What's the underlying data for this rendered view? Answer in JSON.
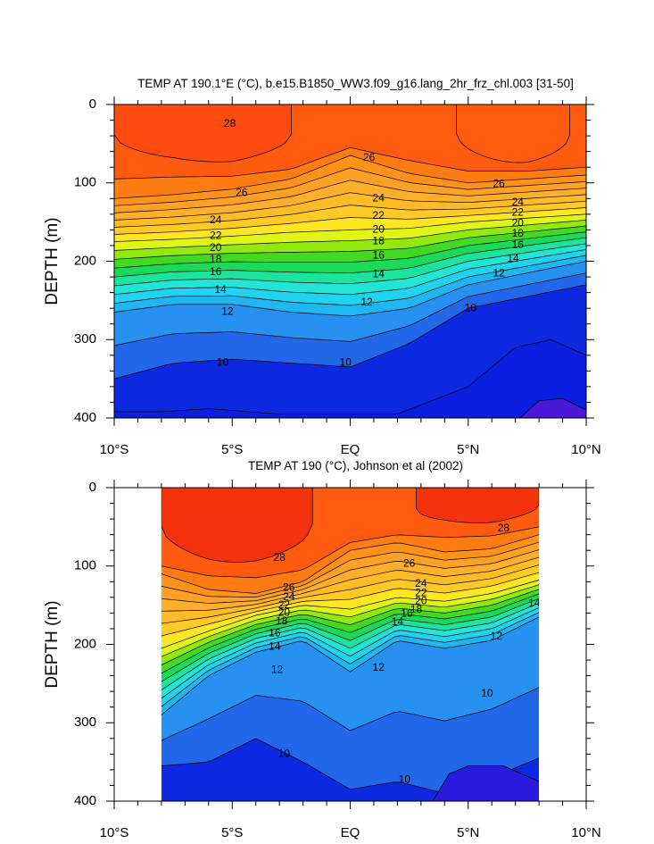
{
  "chart_data": [
    {
      "type": "contour",
      "title": "TEMP AT 190.1°E (°C), b.e15.B1850_WW3.f09_g16.lang_2hr_frz_chl.003 [31-50]",
      "ylabel": "DEPTH (m)",
      "xlabel": "",
      "x_range": [
        -10,
        10
      ],
      "y_range": [
        0,
        400
      ],
      "y_inverted": true,
      "x_ticks": [
        {
          "v": -10,
          "label": "10°S"
        },
        {
          "v": -5,
          "label": "5°S"
        },
        {
          "v": 0,
          "label": "EQ"
        },
        {
          "v": 5,
          "label": "5°N"
        },
        {
          "v": 10,
          "label": "10°N"
        }
      ],
      "y_ticks": [
        0,
        100,
        200,
        300,
        400
      ],
      "data_extent_x": [
        -10,
        10
      ],
      "warm_pools": [
        {
          "lat_start": -10,
          "lat_end": -2.5,
          "level": 28
        },
        {
          "lat_start": 4.5,
          "lat_end": 9.3,
          "level": 27.5
        }
      ],
      "thermocline": [
        {
          "lat": -10,
          "z28": 70,
          "z26": 120,
          "z20": 175,
          "z12": 265,
          "z10": 350
        },
        {
          "lat": -7.5,
          "z28": 70,
          "z26": 115,
          "z20": 172,
          "z12": 255,
          "z10": 330
        },
        {
          "lat": -5,
          "z28": 75,
          "z26": 108,
          "z20": 168,
          "z12": 255,
          "z10": 325
        },
        {
          "lat": -2.5,
          "z28": 70,
          "z26": 95,
          "z20": 163,
          "z12": 265,
          "z10": 330
        },
        {
          "lat": 0,
          "z28": 45,
          "z26": 65,
          "z20": 160,
          "z12": 270,
          "z10": 335
        },
        {
          "lat": 2.5,
          "z28": 55,
          "z26": 88,
          "z20": 158,
          "z12": 260,
          "z10": 305
        },
        {
          "lat": 5,
          "z28": 70,
          "z26": 100,
          "z20": 150,
          "z12": 230,
          "z10": 260
        },
        {
          "lat": 7.5,
          "z28": 75,
          "z26": 95,
          "z20": 145,
          "z12": 215,
          "z10": 245
        },
        {
          "lat": 10,
          "z28": 70,
          "z26": 90,
          "z20": 140,
          "z12": 200,
          "z10": 230
        }
      ],
      "bottom_contours": [
        {
          "level": 9,
          "points": [
            [
              -10,
              392
            ],
            [
              -8,
              392
            ],
            [
              -6,
              388
            ],
            [
              -3,
              395
            ],
            [
              0,
              395
            ],
            [
              2,
              395
            ],
            [
              5,
              360
            ],
            [
              7,
              310
            ],
            [
              8.5,
              300
            ],
            [
              10,
              320
            ]
          ]
        },
        {
          "level": 8,
          "points": [
            [
              7.2,
              400
            ],
            [
              8,
              378
            ],
            [
              9,
              375
            ],
            [
              10,
              390
            ]
          ]
        }
      ],
      "contour_labels": [
        {
          "text": "28",
          "x": -5.1,
          "y": 25
        },
        {
          "text": "26",
          "x": 0.8,
          "y": 68
        },
        {
          "text": "26",
          "x": -4.6,
          "y": 113
        },
        {
          "text": "26",
          "x": 6.3,
          "y": 102
        },
        {
          "text": "24",
          "x": -5.7,
          "y": 148
        },
        {
          "text": "22",
          "x": -5.7,
          "y": 168
        },
        {
          "text": "20",
          "x": -5.7,
          "y": 183
        },
        {
          "text": "18",
          "x": -5.7,
          "y": 198
        },
        {
          "text": "16",
          "x": -5.7,
          "y": 214
        },
        {
          "text": "14",
          "x": -5.5,
          "y": 237
        },
        {
          "text": "12",
          "x": -5.2,
          "y": 265
        },
        {
          "text": "10",
          "x": -5.4,
          "y": 330
        },
        {
          "text": "24",
          "x": 1.2,
          "y": 120
        },
        {
          "text": "22",
          "x": 1.2,
          "y": 142
        },
        {
          "text": "20",
          "x": 1.2,
          "y": 160
        },
        {
          "text": "18",
          "x": 1.2,
          "y": 175
        },
        {
          "text": "16",
          "x": 1.2,
          "y": 193
        },
        {
          "text": "14",
          "x": 1.2,
          "y": 217
        },
        {
          "text": "12",
          "x": 0.7,
          "y": 253
        },
        {
          "text": "10",
          "x": -0.2,
          "y": 330
        },
        {
          "text": "24",
          "x": 7.1,
          "y": 125
        },
        {
          "text": "22",
          "x": 7.1,
          "y": 138
        },
        {
          "text": "20",
          "x": 7.1,
          "y": 152
        },
        {
          "text": "18",
          "x": 7.1,
          "y": 165
        },
        {
          "text": "16",
          "x": 7.1,
          "y": 180
        },
        {
          "text": "14",
          "x": 6.9,
          "y": 197
        },
        {
          "text": "12",
          "x": 6.3,
          "y": 216
        },
        {
          "text": "10",
          "x": 5.1,
          "y": 260
        }
      ]
    },
    {
      "type": "contour",
      "title": "TEMP AT 190 (°C), Johnson et al (2002)",
      "ylabel": "DEPTH (m)",
      "xlabel": "",
      "x_range": [
        -10,
        10
      ],
      "y_range": [
        0,
        400
      ],
      "y_inverted": true,
      "x_ticks": [
        {
          "v": -10,
          "label": "10°S"
        },
        {
          "v": -5,
          "label": "5°S"
        },
        {
          "v": 0,
          "label": "EQ"
        },
        {
          "v": 5,
          "label": "5°N"
        },
        {
          "v": 10,
          "label": "10°N"
        }
      ],
      "y_ticks": [
        0,
        100,
        200,
        300,
        400
      ],
      "data_extent_x": [
        -8,
        8
      ],
      "warm_pools": [
        {
          "lat_start": -8,
          "lat_end": -1.6,
          "level": 28.5
        },
        {
          "lat_start": 2.8,
          "lat_end": 8,
          "level": 28.5
        }
      ],
      "thermocline": [
        {
          "lat": -8,
          "z28": 90,
          "z26": 110,
          "z20": 205,
          "z12": 290,
          "z10": 355
        },
        {
          "lat": -6,
          "z28": 95,
          "z26": 130,
          "z20": 183,
          "z12": 240,
          "z10": 350
        },
        {
          "lat": -4,
          "z28": 95,
          "z26": 135,
          "z20": 163,
          "z12": 210,
          "z10": 320
        },
        {
          "lat": -2,
          "z28": 90,
          "z26": 120,
          "z20": 150,
          "z12": 195,
          "z10": 350
        },
        {
          "lat": 0,
          "z28": 60,
          "z26": 80,
          "z20": 155,
          "z12": 235,
          "z10": 385
        },
        {
          "lat": 2,
          "z28": 50,
          "z26": 70,
          "z20": 140,
          "z12": 195,
          "z10": 375
        },
        {
          "lat": 4,
          "z28": 45,
          "z26": 82,
          "z20": 145,
          "z12": 205,
          "z10": 390
        },
        {
          "lat": 6,
          "z28": 45,
          "z26": 78,
          "z20": 135,
          "z12": 195,
          "z10": 370
        },
        {
          "lat": 8,
          "z28": 40,
          "z26": 60,
          "z20": 118,
          "z12": 165,
          "z10": 345
        }
      ],
      "bottom_contours": [
        {
          "level": 8.5,
          "points": [
            [
              3.5,
              400
            ],
            [
              4.2,
              365
            ],
            [
              5,
              355
            ],
            [
              6.5,
              355
            ],
            [
              8,
              375
            ]
          ]
        }
      ],
      "contour_labels": [
        {
          "text": "28",
          "x": 6.5,
          "y": 52
        },
        {
          "text": "28",
          "x": -3.0,
          "y": 90
        },
        {
          "text": "26",
          "x": 2.5,
          "y": 97
        },
        {
          "text": "26",
          "x": -2.6,
          "y": 128
        },
        {
          "text": "24",
          "x": -2.6,
          "y": 140
        },
        {
          "text": "22",
          "x": -2.8,
          "y": 150
        },
        {
          "text": "20",
          "x": -2.8,
          "y": 160
        },
        {
          "text": "18",
          "x": -2.9,
          "y": 171
        },
        {
          "text": "16",
          "x": -3.2,
          "y": 186
        },
        {
          "text": "14",
          "x": -3.2,
          "y": 203
        },
        {
          "text": "12",
          "x": -3.1,
          "y": 233
        },
        {
          "text": "10",
          "x": -2.8,
          "y": 340
        },
        {
          "text": "24",
          "x": 3.0,
          "y": 123
        },
        {
          "text": "22",
          "x": 3.0,
          "y": 135
        },
        {
          "text": "20",
          "x": 3.0,
          "y": 145
        },
        {
          "text": "18",
          "x": 2.8,
          "y": 156
        },
        {
          "text": "16",
          "x": 2.4,
          "y": 161
        },
        {
          "text": "14",
          "x": 2.0,
          "y": 172
        },
        {
          "text": "12",
          "x": 1.2,
          "y": 230
        },
        {
          "text": "12",
          "x": 6.2,
          "y": 190
        },
        {
          "text": "14",
          "x": 7.8,
          "y": 148
        },
        {
          "text": "10",
          "x": 5.8,
          "y": 263
        },
        {
          "text": "10",
          "x": 2.3,
          "y": 373
        }
      ]
    }
  ]
}
